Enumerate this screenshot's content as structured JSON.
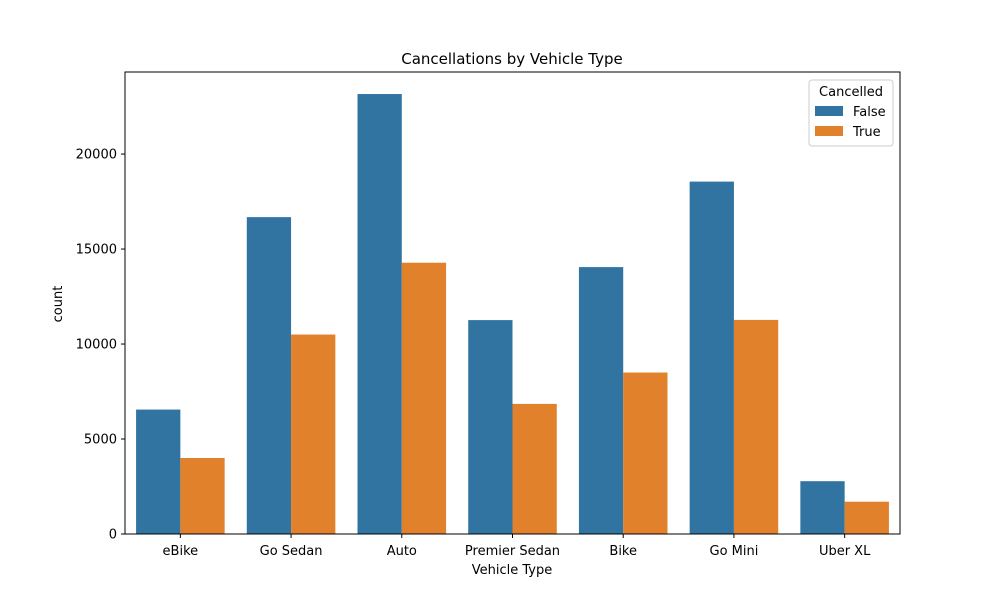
{
  "chart_data": {
    "type": "bar",
    "title": "Cancellations by Vehicle Type",
    "xlabel": "Vehicle Type",
    "ylabel": "count",
    "categories": [
      "eBike",
      "Go Sedan",
      "Auto",
      "Premier Sedan",
      "Bike",
      "Go Mini",
      "Uber XL"
    ],
    "series": [
      {
        "name": "False",
        "color": "#3274a1",
        "values": [
          6550,
          16680,
          23160,
          11260,
          14050,
          18550,
          2780
        ]
      },
      {
        "name": "True",
        "color": "#e1812c",
        "values": [
          4000,
          10500,
          14280,
          6850,
          8500,
          11270,
          1700
        ]
      }
    ],
    "ylim": [
      0,
      24320
    ],
    "yticks": [
      0,
      5000,
      10000,
      15000,
      20000
    ],
    "grid": false,
    "legend": {
      "title": "Cancelled",
      "position": "top-right"
    }
  }
}
